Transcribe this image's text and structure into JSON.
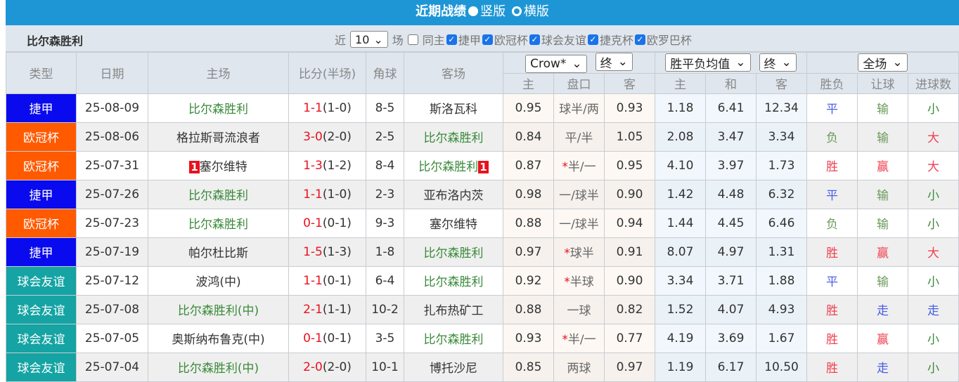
{
  "header": {
    "title": "近期战绩",
    "opt_vertical": "竖版",
    "opt_horizontal": "横版"
  },
  "filter": {
    "team": "比尔森胜利",
    "near_label": "近",
    "count": "10",
    "games_label": "场",
    "same_home": "同主",
    "competitions": [
      "捷甲",
      "欧冠杯",
      "球会友谊",
      "捷克杯",
      "欧罗巴杯"
    ]
  },
  "columns": {
    "type": "类型",
    "date": "日期",
    "home": "主场",
    "score": "比分(半场)",
    "corner": "角球",
    "away": "客场",
    "odds_company": "Crow*",
    "odds_stage": "终",
    "avg_label": "胜平负均值",
    "avg_stage": "终",
    "scope": "全场",
    "ah_home": "主",
    "ah_line": "盘口",
    "ah_away": "客",
    "x_home": "主",
    "x_draw": "和",
    "x_away": "客",
    "wl": "胜负",
    "hc": "让球",
    "ou": "进球数"
  },
  "colors": {
    "捷甲": "#0a0aee",
    "欧冠杯": "#ff5a00",
    "球会友谊": "#15a3a3"
  },
  "rows": [
    {
      "type": "捷甲",
      "date": "25-08-09",
      "home": "比尔森胜利",
      "home_hl": true,
      "score": "1-1",
      "half": "(1-0)",
      "corner": "8-5",
      "away": "斯洛瓦科",
      "away_hl": false,
      "ah_h": "0.95",
      "line": "球半/两",
      "star": false,
      "ah_a": "0.93",
      "x1": "1.18",
      "xd": "6.41",
      "x2": "12.34",
      "wl": "平",
      "hc": "输",
      "ou": "小"
    },
    {
      "type": "欧冠杯",
      "date": "25-08-06",
      "home": "格拉斯哥流浪者",
      "home_hl": false,
      "score": "3-0",
      "half": "(2-0)",
      "corner": "2-5",
      "away": "比尔森胜利",
      "away_hl": true,
      "ah_h": "0.84",
      "line": "平/半",
      "star": false,
      "ah_a": "1.05",
      "x1": "2.08",
      "xd": "3.47",
      "x2": "3.34",
      "wl": "负",
      "hc": "输",
      "ou": "大"
    },
    {
      "type": "欧冠杯",
      "date": "25-07-31",
      "home": "塞尔维特",
      "home_hl": false,
      "home_badge": "1",
      "score": "1-3",
      "half": "(1-2)",
      "corner": "8-4",
      "away": "比尔森胜利",
      "away_hl": true,
      "away_badge": "1",
      "ah_h": "0.87",
      "line": "半/一",
      "star": true,
      "ah_a": "0.95",
      "x1": "4.10",
      "xd": "3.97",
      "x2": "1.73",
      "wl": "胜",
      "hc": "赢",
      "ou": "大"
    },
    {
      "type": "捷甲",
      "date": "25-07-26",
      "home": "比尔森胜利",
      "home_hl": true,
      "score": "1-1",
      "half": "(1-0)",
      "corner": "2-3",
      "away": "亚布洛内茨",
      "away_hl": false,
      "ah_h": "0.98",
      "line": "一/球半",
      "star": false,
      "ah_a": "0.90",
      "x1": "1.42",
      "xd": "4.48",
      "x2": "6.32",
      "wl": "平",
      "hc": "输",
      "ou": "小"
    },
    {
      "type": "欧冠杯",
      "date": "25-07-23",
      "home": "比尔森胜利",
      "home_hl": true,
      "score": "0-1",
      "half": "(0-1)",
      "corner": "9-3",
      "away": "塞尔维特",
      "away_hl": false,
      "ah_h": "0.88",
      "line": "一/球半",
      "star": false,
      "ah_a": "0.94",
      "x1": "1.44",
      "xd": "4.45",
      "x2": "6.46",
      "wl": "负",
      "hc": "输",
      "ou": "小"
    },
    {
      "type": "捷甲",
      "date": "25-07-19",
      "home": "帕尔杜比斯",
      "home_hl": false,
      "score": "1-5",
      "half": "(1-3)",
      "corner": "1-8",
      "away": "比尔森胜利",
      "away_hl": true,
      "ah_h": "0.97",
      "line": "球半",
      "star": true,
      "ah_a": "0.91",
      "x1": "8.07",
      "xd": "4.97",
      "x2": "1.31",
      "wl": "胜",
      "hc": "赢",
      "ou": "大"
    },
    {
      "type": "球会友谊",
      "date": "25-07-12",
      "home": "波鸿(中)",
      "home_hl": false,
      "score": "1-1",
      "half": "(0-1)",
      "corner": "6-4",
      "away": "比尔森胜利",
      "away_hl": true,
      "ah_h": "0.92",
      "line": "半球",
      "star": true,
      "ah_a": "0.90",
      "x1": "3.34",
      "xd": "3.71",
      "x2": "1.88",
      "wl": "平",
      "hc": "输",
      "ou": "小"
    },
    {
      "type": "球会友谊",
      "date": "25-07-08",
      "home": "比尔森胜利(中)",
      "home_hl": true,
      "score": "2-1",
      "half": "(1-1)",
      "corner": "10-2",
      "away": "扎布热矿工",
      "away_hl": false,
      "ah_h": "0.88",
      "line": "一球",
      "star": false,
      "ah_a": "0.82",
      "x1": "1.52",
      "xd": "4.07",
      "x2": "4.93",
      "wl": "胜",
      "hc": "走",
      "ou": "走"
    },
    {
      "type": "球会友谊",
      "date": "25-07-05",
      "home": "奥斯纳布鲁克(中)",
      "home_hl": false,
      "score": "0-1",
      "half": "(0-1)",
      "corner": "3-5",
      "away": "比尔森胜利",
      "away_hl": true,
      "ah_h": "0.93",
      "line": "半/一",
      "star": true,
      "ah_a": "0.77",
      "x1": "4.19",
      "xd": "3.69",
      "x2": "1.67",
      "wl": "胜",
      "hc": "赢",
      "ou": "小"
    },
    {
      "type": "球会友谊",
      "date": "25-07-04",
      "home": "比尔森胜利(中)",
      "home_hl": true,
      "score": "2-0",
      "half": "(2-0)",
      "corner": "10-1",
      "away": "博托沙尼",
      "away_hl": false,
      "ah_h": "0.85",
      "line": "两球",
      "star": false,
      "ah_a": "0.97",
      "x1": "1.19",
      "xd": "6.17",
      "x2": "10.50",
      "wl": "胜",
      "hc": "走",
      "ou": "小"
    }
  ]
}
